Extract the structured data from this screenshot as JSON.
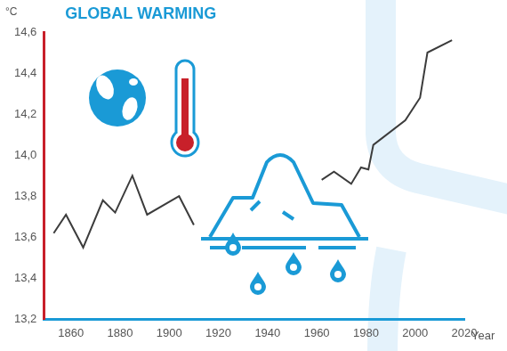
{
  "chart_data": {
    "type": "line",
    "title": "GLOBAL WARMING",
    "x_label": "Year",
    "y_label": "°C",
    "x": [
      1853,
      1858,
      1865,
      1873,
      1878,
      1885,
      1891,
      1904,
      1910,
      1935,
      1962,
      1967,
      1974,
      1978,
      1981,
      1983,
      1996,
      2002,
      2005,
      2015
    ],
    "values": [
      13.62,
      13.71,
      13.55,
      13.78,
      13.72,
      13.9,
      13.71,
      13.8,
      13.66,
      null,
      13.88,
      13.92,
      13.86,
      13.94,
      13.93,
      14.05,
      14.17,
      14.28,
      14.5,
      14.56
    ],
    "color": "#3c3c3c",
    "xlim": [
      1849,
      2020
    ],
    "ylim": [
      13.2,
      14.6
    ],
    "xticks": [
      1860,
      1880,
      1900,
      1920,
      1940,
      1960,
      1980,
      2000,
      2020
    ],
    "yticks": [
      {
        "value": 13.2,
        "label": "13,2"
      },
      {
        "value": 13.4,
        "label": "13,4"
      },
      {
        "value": 13.6,
        "label": "13,6"
      },
      {
        "value": 13.8,
        "label": "13,8"
      },
      {
        "value": 14.0,
        "label": "14,0"
      },
      {
        "value": 14.2,
        "label": "14,2"
      },
      {
        "value": 14.4,
        "label": "14,4"
      },
      {
        "value": 14.6,
        "label": "14,6"
      }
    ],
    "grid": false
  }
}
